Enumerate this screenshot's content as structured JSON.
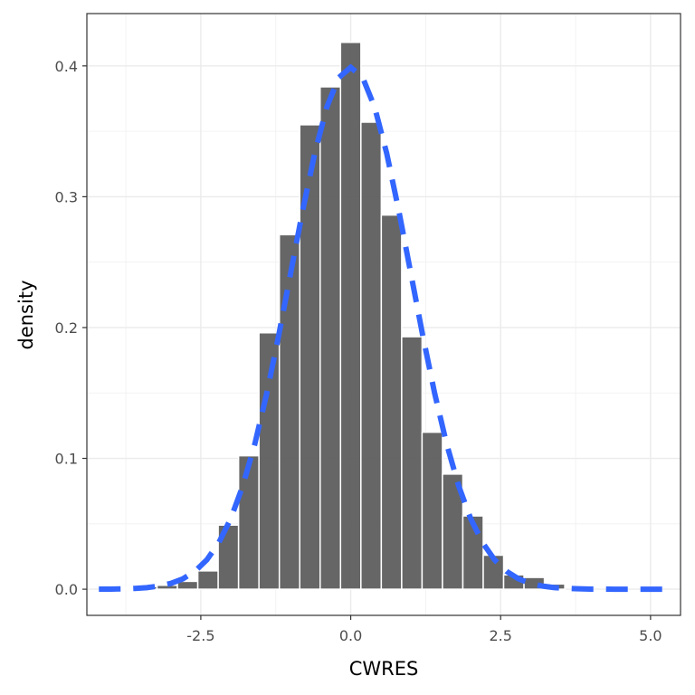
{
  "chart_data": {
    "type": "bar",
    "title": "",
    "xlabel": "CWRES",
    "ylabel": "density",
    "xlim": [
      -4.4,
      5.5
    ],
    "ylim": [
      -0.02,
      0.44
    ],
    "grid": true,
    "x_ticks": [
      -2.5,
      0.0,
      2.5,
      5.0
    ],
    "x_tick_labels": [
      "-2.5",
      "0.0",
      "2.5",
      "5.0"
    ],
    "y_ticks": [
      0.0,
      0.1,
      0.2,
      0.3,
      0.4
    ],
    "y_tick_labels": [
      "0.0",
      "0.1",
      "0.2",
      "0.3",
      "0.4"
    ],
    "bin_width": 0.34,
    "bar_color": "#595959",
    "series": [
      {
        "type": "histogram",
        "x": [
          -3.74,
          -3.4,
          -3.06,
          -2.72,
          -2.38,
          -2.04,
          -1.7,
          -1.36,
          -1.02,
          -0.68,
          -0.34,
          0.0,
          0.34,
          0.68,
          1.02,
          1.36,
          1.7,
          2.04,
          2.38,
          2.72,
          3.06,
          3.4
        ],
        "values": [
          0.001,
          0.002,
          0.003,
          0.006,
          0.014,
          0.049,
          0.102,
          0.196,
          0.271,
          0.355,
          0.384,
          0.418,
          0.357,
          0.286,
          0.193,
          0.12,
          0.088,
          0.056,
          0.026,
          0.011,
          0.009,
          0.004
        ]
      },
      {
        "type": "line",
        "style": "dashed",
        "color": "#3366ff",
        "x": [
          -4.2,
          -4.0,
          -3.8,
          -3.6,
          -3.4,
          -3.2,
          -3.0,
          -2.8,
          -2.6,
          -2.4,
          -2.2,
          -2.0,
          -1.8,
          -1.6,
          -1.4,
          -1.2,
          -1.0,
          -0.8,
          -0.6,
          -0.4,
          -0.2,
          0.0,
          0.2,
          0.4,
          0.6,
          0.8,
          1.0,
          1.2,
          1.4,
          1.6,
          1.8,
          2.0,
          2.2,
          2.4,
          2.6,
          2.8,
          3.0,
          3.2,
          3.4,
          3.6,
          3.8,
          4.0,
          4.2,
          4.4,
          4.6,
          4.8,
          5.0,
          5.2,
          5.4
        ],
        "values": [
          0.0001,
          0.0001,
          0.0003,
          0.0006,
          0.0012,
          0.0024,
          0.0044,
          0.0079,
          0.0136,
          0.0224,
          0.0355,
          0.054,
          0.079,
          0.1109,
          0.1497,
          0.1942,
          0.242,
          0.2897,
          0.3332,
          0.3683,
          0.391,
          0.3989,
          0.391,
          0.3683,
          0.3332,
          0.2897,
          0.242,
          0.1942,
          0.1497,
          0.1109,
          0.079,
          0.054,
          0.0355,
          0.0224,
          0.0136,
          0.0079,
          0.0044,
          0.0024,
          0.0012,
          0.0006,
          0.0003,
          0.0001,
          0.0001,
          0.0,
          0.0,
          0.0,
          0.0,
          0.0,
          0.0
        ]
      }
    ]
  }
}
